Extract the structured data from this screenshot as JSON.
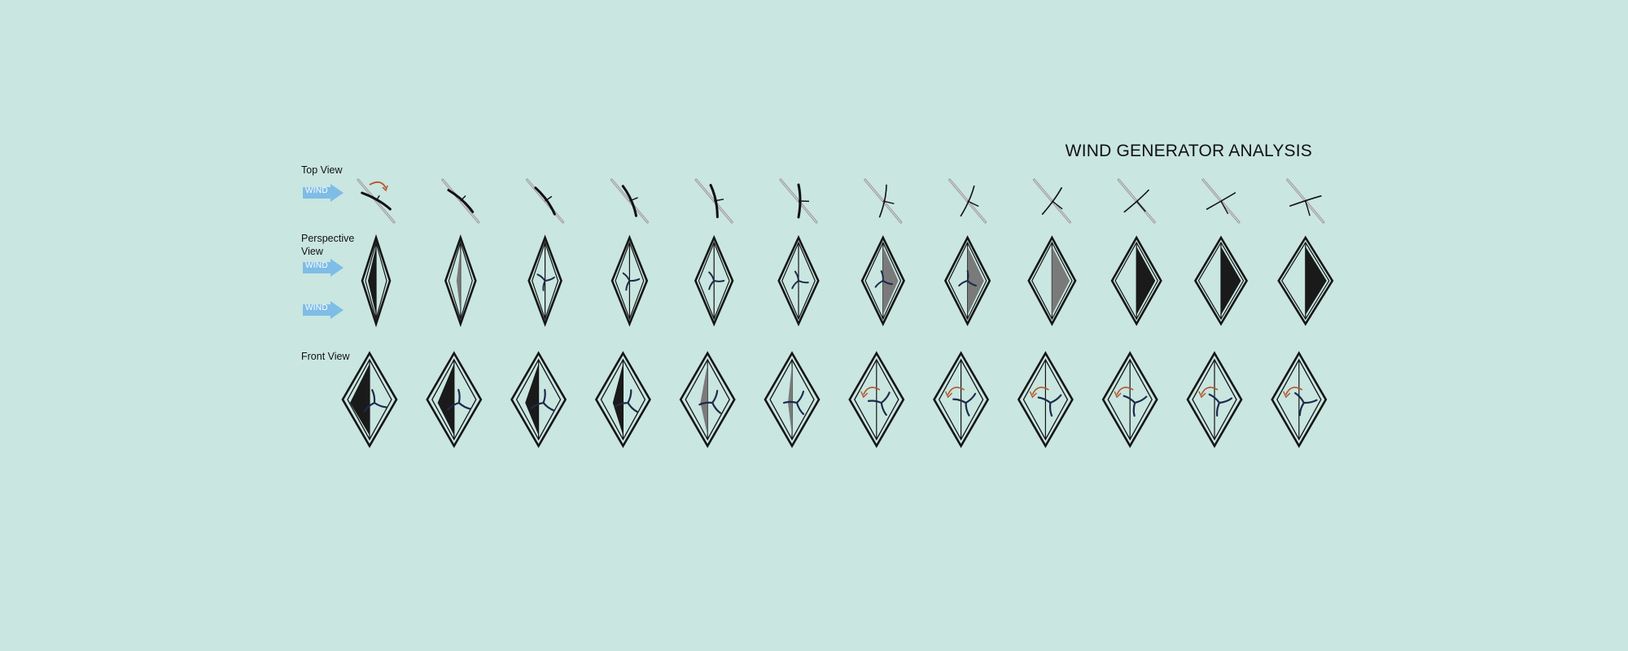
{
  "title": "WIND GENERATOR ANALYSIS",
  "rows": {
    "top_label": "Top View",
    "perspective_label": "Perspective View",
    "front_label": "Front View"
  },
  "wind_tag": "WIND",
  "frame_count": 12,
  "colors": {
    "background": "#c9e6e0",
    "wind_arrow": "#7fbde6",
    "rotation_arrow": "#b3542a",
    "frame": "#151515",
    "sail_dark": "#1a1a1a",
    "sail_grey": "#7a7a7a",
    "rotor": "#1f2a4a",
    "mast": "#9a9a9a"
  }
}
